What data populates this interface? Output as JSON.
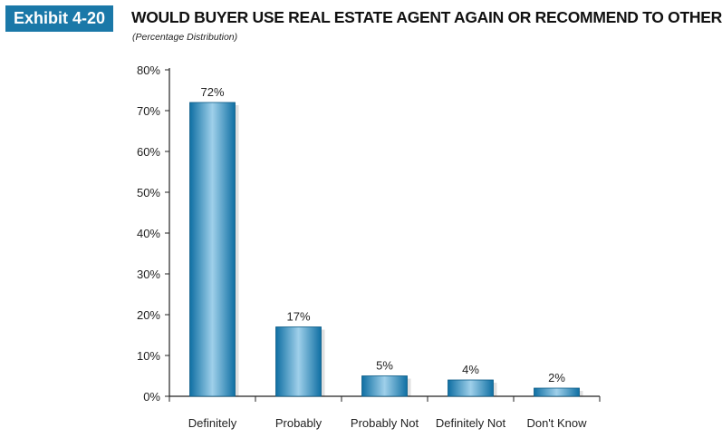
{
  "exhibit_label": "Exhibit 4-20",
  "chart_data": {
    "type": "bar",
    "title": "WOULD BUYER USE REAL ESTATE AGENT AGAIN OR RECOMMEND TO OTHERS",
    "subtitle": "(Percentage Distribution)",
    "categories": [
      "Definitely",
      "Probably",
      "Probably Not",
      "Definitely Not",
      "Don't Know"
    ],
    "values": [
      72,
      17,
      5,
      4,
      2
    ],
    "data_labels": [
      "72%",
      "17%",
      "5%",
      "4%",
      "2%"
    ],
    "yticks": [
      "0%",
      "10%",
      "20%",
      "30%",
      "40%",
      "50%",
      "60%",
      "70%",
      "80%"
    ],
    "ylim": [
      0,
      80
    ],
    "xlabel": "",
    "ylabel": "",
    "bar_color": "#1a7fb5",
    "grid": false
  }
}
